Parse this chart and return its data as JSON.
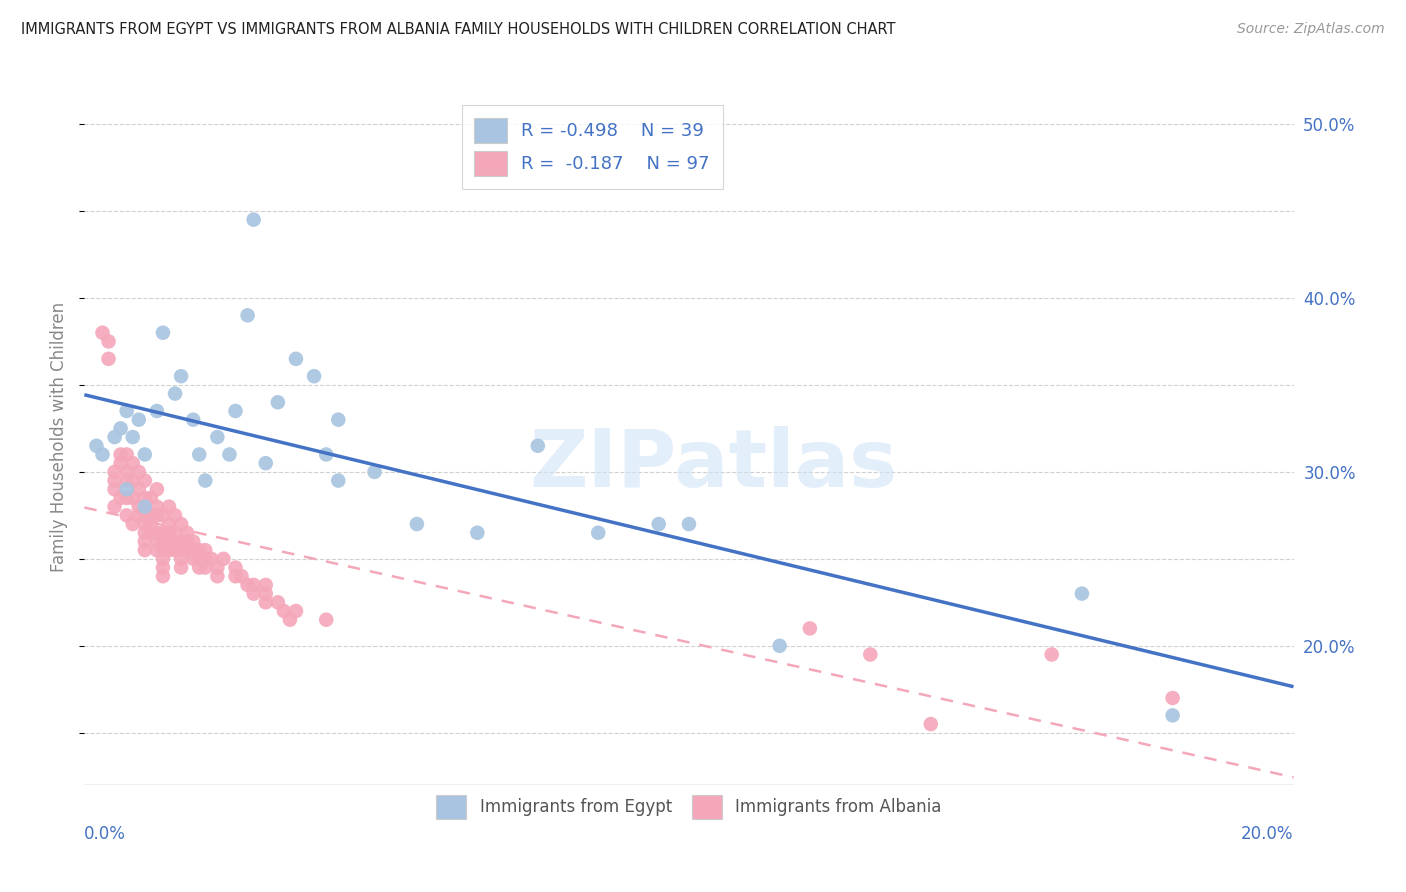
{
  "title": "IMMIGRANTS FROM EGYPT VS IMMIGRANTS FROM ALBANIA FAMILY HOUSEHOLDS WITH CHILDREN CORRELATION CHART",
  "source": "Source: ZipAtlas.com",
  "ylabel": "Family Households with Children",
  "legend1_R": "R = -0.498",
  "legend1_N": "N = 39",
  "legend2_R": "R =  -0.187",
  "legend2_N": "N = 97",
  "egypt_color": "#a8c4e0",
  "albania_color": "#f4a7b9",
  "egypt_line_color": "#4472c4",
  "albania_line_color": "#f4a7b9",
  "background_color": "#ffffff",
  "grid_color": "#d0d0d0",
  "axis_color": "#4472c4",
  "title_color": "#222222",
  "ylabel_color": "#888888",
  "watermark_color": "#d0e4f5",
  "watermark": "ZIPatlas",
  "xlim": [
    0.0,
    0.2
  ],
  "ylim": [
    0.12,
    0.52
  ],
  "egypt_points_x": [
    0.002,
    0.003,
    0.005,
    0.006,
    0.007,
    0.007,
    0.008,
    0.009,
    0.01,
    0.01,
    0.012,
    0.013,
    0.015,
    0.016,
    0.018,
    0.019,
    0.02,
    0.022,
    0.024,
    0.025,
    0.027,
    0.028,
    0.03,
    0.032,
    0.035,
    0.038,
    0.04,
    0.042,
    0.042,
    0.048,
    0.055,
    0.065,
    0.075,
    0.085,
    0.095,
    0.1,
    0.115,
    0.165,
    0.18
  ],
  "egypt_points_y": [
    0.315,
    0.31,
    0.32,
    0.325,
    0.335,
    0.29,
    0.32,
    0.33,
    0.31,
    0.28,
    0.335,
    0.38,
    0.345,
    0.355,
    0.33,
    0.31,
    0.295,
    0.32,
    0.31,
    0.335,
    0.39,
    0.445,
    0.305,
    0.34,
    0.365,
    0.355,
    0.31,
    0.33,
    0.295,
    0.3,
    0.27,
    0.265,
    0.315,
    0.265,
    0.27,
    0.27,
    0.2,
    0.23,
    0.16
  ],
  "albania_points_x": [
    0.003,
    0.004,
    0.004,
    0.005,
    0.005,
    0.005,
    0.005,
    0.006,
    0.006,
    0.006,
    0.007,
    0.007,
    0.007,
    0.007,
    0.007,
    0.008,
    0.008,
    0.008,
    0.008,
    0.009,
    0.009,
    0.009,
    0.009,
    0.01,
    0.01,
    0.01,
    0.01,
    0.01,
    0.01,
    0.01,
    0.01,
    0.011,
    0.011,
    0.011,
    0.011,
    0.012,
    0.012,
    0.012,
    0.012,
    0.012,
    0.012,
    0.013,
    0.013,
    0.013,
    0.013,
    0.013,
    0.013,
    0.013,
    0.014,
    0.014,
    0.014,
    0.014,
    0.014,
    0.015,
    0.015,
    0.015,
    0.015,
    0.016,
    0.016,
    0.016,
    0.016,
    0.016,
    0.017,
    0.017,
    0.017,
    0.018,
    0.018,
    0.018,
    0.019,
    0.019,
    0.019,
    0.02,
    0.02,
    0.02,
    0.021,
    0.022,
    0.022,
    0.023,
    0.025,
    0.025,
    0.026,
    0.027,
    0.028,
    0.028,
    0.03,
    0.03,
    0.03,
    0.032,
    0.033,
    0.034,
    0.035,
    0.04,
    0.16,
    0.18,
    0.12,
    0.13,
    0.14
  ],
  "albania_points_y": [
    0.38,
    0.375,
    0.365,
    0.29,
    0.295,
    0.28,
    0.3,
    0.305,
    0.31,
    0.285,
    0.3,
    0.31,
    0.295,
    0.285,
    0.275,
    0.305,
    0.295,
    0.285,
    0.27,
    0.3,
    0.29,
    0.28,
    0.275,
    0.295,
    0.285,
    0.28,
    0.275,
    0.27,
    0.265,
    0.26,
    0.255,
    0.285,
    0.275,
    0.27,
    0.265,
    0.29,
    0.28,
    0.275,
    0.265,
    0.26,
    0.255,
    0.275,
    0.265,
    0.26,
    0.255,
    0.25,
    0.245,
    0.24,
    0.28,
    0.27,
    0.265,
    0.26,
    0.255,
    0.275,
    0.265,
    0.26,
    0.255,
    0.27,
    0.26,
    0.255,
    0.25,
    0.245,
    0.265,
    0.26,
    0.255,
    0.26,
    0.255,
    0.25,
    0.255,
    0.25,
    0.245,
    0.255,
    0.25,
    0.245,
    0.25,
    0.245,
    0.24,
    0.25,
    0.245,
    0.24,
    0.24,
    0.235,
    0.235,
    0.23,
    0.235,
    0.23,
    0.225,
    0.225,
    0.22,
    0.215,
    0.22,
    0.215,
    0.195,
    0.17,
    0.21,
    0.195,
    0.155
  ]
}
